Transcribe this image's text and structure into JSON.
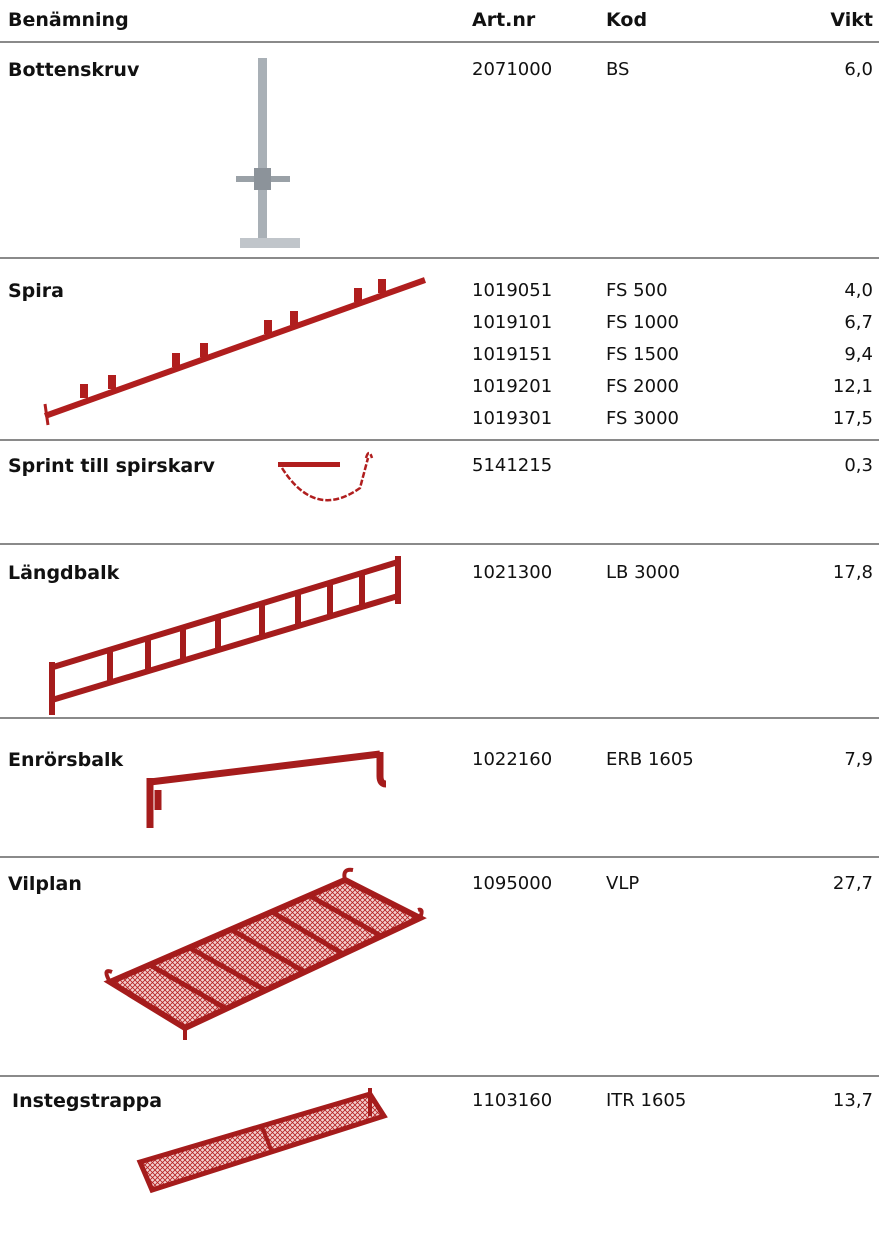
{
  "table": {
    "columns": [
      "Benämning",
      "Art.nr",
      "Kod",
      "Vikt"
    ],
    "rows": [
      {
        "name": "Bottenskruv",
        "items": [
          {
            "art": "2071000",
            "kod": "BS",
            "vikt": "6,0"
          }
        ]
      },
      {
        "name": "Spira",
        "items": [
          {
            "art": "1019051",
            "kod": "FS 500",
            "vikt": "4,0"
          },
          {
            "art": "1019101",
            "kod": "FS 1000",
            "vikt": "6,7"
          },
          {
            "art": "1019151",
            "kod": "FS 1500",
            "vikt": "9,4"
          },
          {
            "art": "1019201",
            "kod": "FS 2000",
            "vikt": "12,1"
          },
          {
            "art": "1019301",
            "kod": "FS 3000",
            "vikt": "17,5"
          }
        ]
      },
      {
        "name": "Sprint till spirskarv",
        "items": [
          {
            "art": "5141215",
            "vikt": "0,3"
          }
        ]
      },
      {
        "name": "Längdbalk",
        "items": [
          {
            "art": "1021300",
            "kod": "LB 3000",
            "vikt": "17,8"
          }
        ]
      },
      {
        "name": "Enrörsbalk",
        "items": [
          {
            "art": "1022160",
            "kod": "ERB 1605",
            "vikt": "7,9"
          }
        ]
      },
      {
        "name": "Vilplan",
        "items": [
          {
            "art": "1095000",
            "kod": "VLP",
            "vikt": "27,7"
          }
        ]
      },
      {
        "name": "Instegstrappa",
        "items": [
          {
            "art": "1103160",
            "kod": "ITR 1605",
            "vikt": "13,7"
          }
        ]
      }
    ]
  }
}
